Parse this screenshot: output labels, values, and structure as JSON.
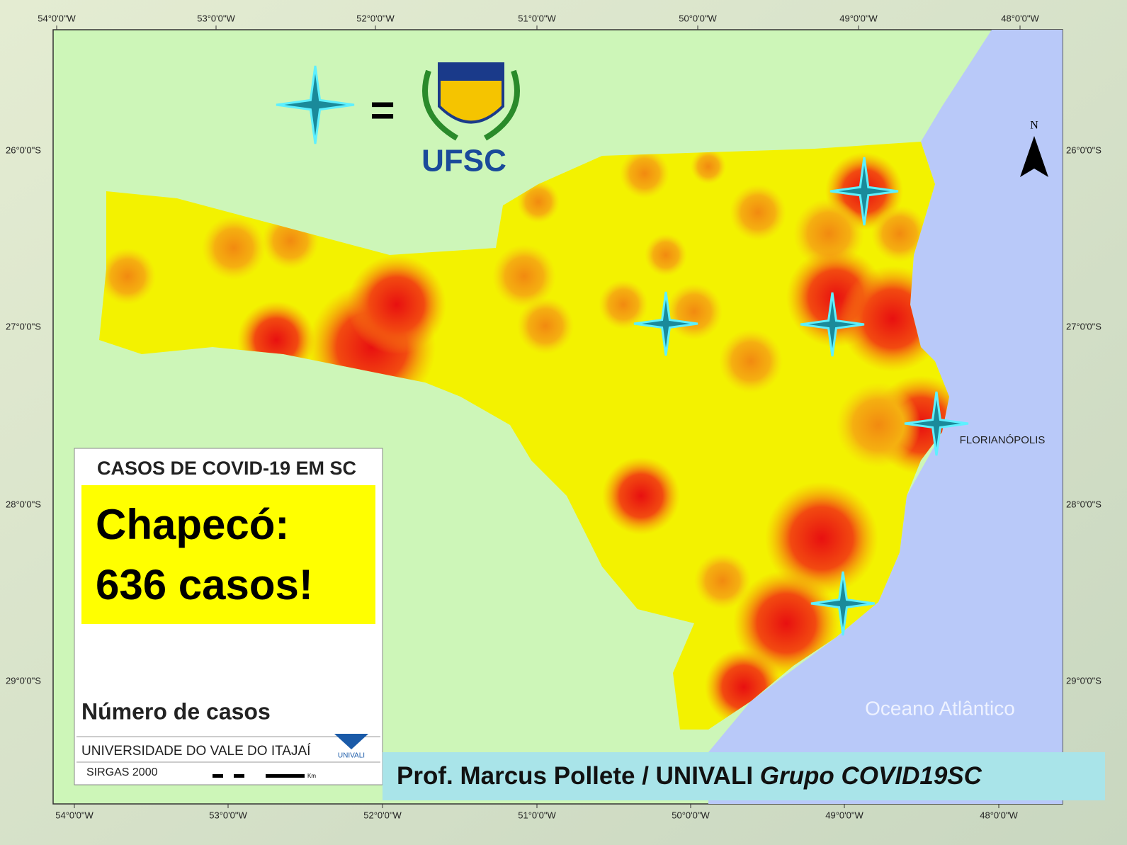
{
  "map": {
    "longitude_labels_top": [
      "54°0'0\"W",
      "53°0'0\"W",
      "52°0'0\"W",
      "51°0'0\"W",
      "50°0'0\"W",
      "49°0'0\"W",
      "48°0'0\"W"
    ],
    "longitude_labels_bottom": [
      "54°0'0\"W",
      "53°0'0\"W",
      "52°0'0\"W",
      "51°0'0\"W",
      "50°0'0\"W",
      "49°0'0\"W",
      "48°0'0\"W"
    ],
    "latitude_labels_left": [
      "26°0'0\"S",
      "27°0'0\"S",
      "28°0'0\"S",
      "29°0'0\"S"
    ],
    "latitude_labels_right": [
      "26°0'0\"S",
      "27°0'0\"S",
      "28°0'0\"S",
      "29°0'0\"S"
    ],
    "legend_equals": "=",
    "logo_text": "UFSC",
    "north_label": "N",
    "city_label": "FLORIANÓPOLIS",
    "ocean_label": "Oceano Atlântico"
  },
  "legend_box": {
    "title": "CASOS DE COVID-19 EM SC",
    "highlight_line1": "Chapecó:",
    "highlight_line2": "636 casos!",
    "heading": "Número de casos",
    "institution": "UNIVERSIDADE DO VALE DO ITAJAÍ",
    "logo_text": "UNIVALI",
    "datum": "SIRGAS 2000",
    "scale_unit": "Km"
  },
  "credit": {
    "author": "Prof. Marcus Pollete / UNIVALI",
    "group": "Grupo COVID19SC"
  }
}
